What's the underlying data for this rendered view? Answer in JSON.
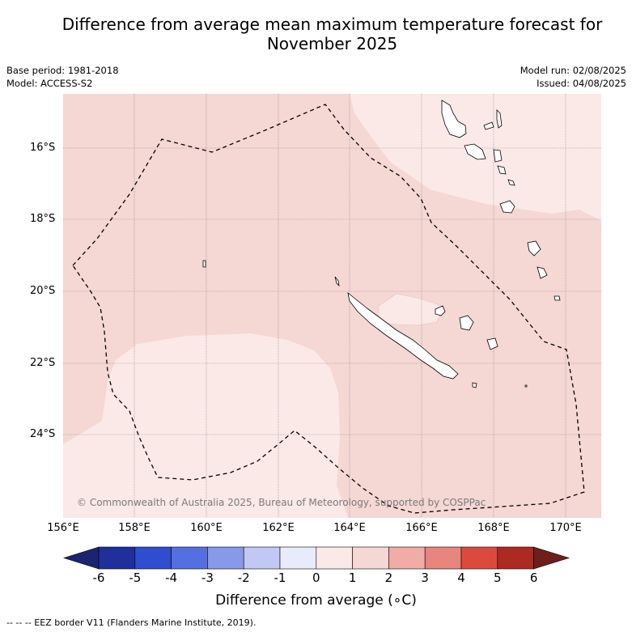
{
  "title_line1": "Difference from average mean maximum temperature forecast for",
  "title_line2": "November 2025",
  "meta": {
    "base_period": "Base period: 1981-2018",
    "model": "Model: ACCESS-S2",
    "model_run": "Model run: 02/08/2025",
    "issued": "Issued: 04/08/2025"
  },
  "map": {
    "lat_ticks": [
      "16°S",
      "18°S",
      "20°S",
      "22°S",
      "24°S"
    ],
    "lon_ticks": [
      "156°E",
      "158°E",
      "160°E",
      "162°E",
      "164°E",
      "166°E",
      "168°E",
      "170°E"
    ],
    "copyright": "© Commonwealth of Australia 2025, Bureau of Meteorology, supported by COSPPac",
    "colors": {
      "zone_0_1": "#fbe9e7",
      "zone_1_2": "#f5d7d4"
    }
  },
  "colorbar": {
    "ticks": [
      "-6",
      "-5",
      "-4",
      "-3",
      "-2",
      "-1",
      "0",
      "1",
      "2",
      "3",
      "4",
      "5",
      "6"
    ],
    "colors": [
      "#1f2f9c",
      "#2e4ecf",
      "#5470e0",
      "#8799e8",
      "#c1c8f3",
      "#e8ebfa",
      "#fbe9e7",
      "#f5d7d4",
      "#f0aca5",
      "#e8857c",
      "#dc4a3e",
      "#ac2a21"
    ],
    "under_color": "#1a2470",
    "over_color": "#6e1f1a",
    "title": "Difference from average (∘C)"
  },
  "eez_note": "--  --  -- EEZ border V11 (Flanders Marine Institute, 2019)."
}
